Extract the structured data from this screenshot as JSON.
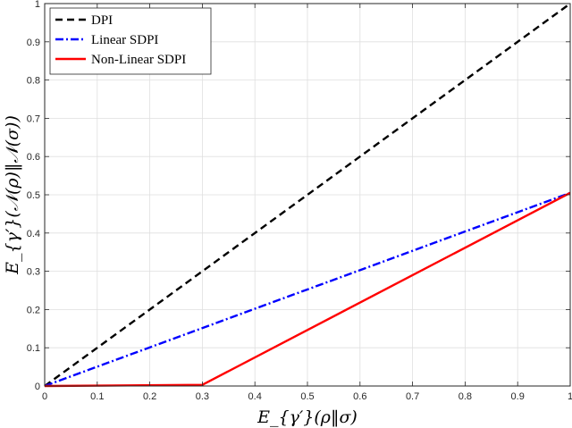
{
  "chart_data": {
    "type": "line",
    "title": "",
    "xlabel": "E_{γ′}(ρ‖σ)",
    "ylabel": "E_{γ′}(𝒩(ρ)‖𝒩(σ))",
    "xlim": [
      0,
      1
    ],
    "ylim": [
      0,
      1
    ],
    "xticks": [
      0,
      0.1,
      0.2,
      0.3,
      0.4,
      0.5,
      0.6,
      0.7,
      0.8,
      0.9,
      1
    ],
    "yticks": [
      0,
      0.1,
      0.2,
      0.3,
      0.4,
      0.5,
      0.6,
      0.7,
      0.8,
      0.9,
      1
    ],
    "xtick_labels": [
      "0",
      "0.1",
      "0.2",
      "0.3",
      "0.4",
      "0.5",
      "0.6",
      "0.7",
      "0.8",
      "0.9",
      "1"
    ],
    "ytick_labels": [
      "0",
      "0.1",
      "0.2",
      "0.3",
      "0.4",
      "0.5",
      "0.6",
      "0.7",
      "0.8",
      "0.9",
      "1"
    ],
    "grid": true,
    "legend": "top-left",
    "series": [
      {
        "name": "DPI",
        "color": "#000000",
        "dash": "dashed",
        "x": [
          0,
          1
        ],
        "y": [
          0,
          1
        ]
      },
      {
        "name": "Linear SDPI",
        "color": "#0000ff",
        "dash": "dashdot",
        "x": [
          0,
          1
        ],
        "y": [
          0,
          0.505
        ]
      },
      {
        "name": "Non-Linear SDPI",
        "color": "#ff0000",
        "dash": "solid",
        "x": [
          0,
          0.3,
          1
        ],
        "y": [
          0,
          0.003,
          0.505
        ]
      }
    ]
  }
}
